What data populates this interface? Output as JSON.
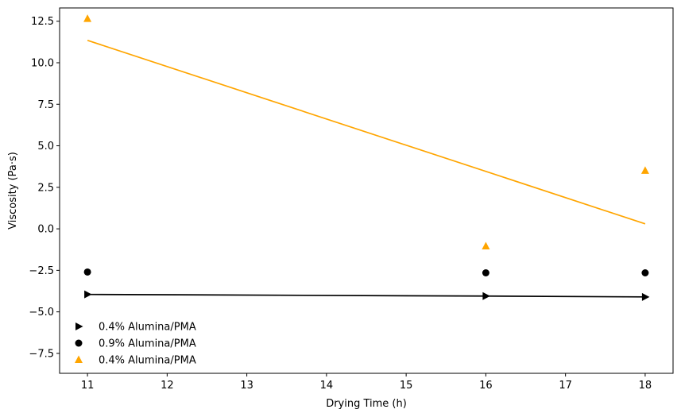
{
  "chart_data": {
    "type": "scatter",
    "xlabel": "Drying Time (h)",
    "ylabel": "Viscosity (Pa·s)",
    "xlim": [
      10.65,
      18.35
    ],
    "ylim": [
      -8.7,
      13.3
    ],
    "xticks": [
      11,
      12,
      13,
      14,
      15,
      16,
      17,
      18
    ],
    "xtick_labels": [
      "11",
      "12",
      "13",
      "14",
      "15",
      "16",
      "17",
      "18"
    ],
    "yticks": [
      -7.5,
      -5.0,
      -2.5,
      0.0,
      2.5,
      5.0,
      7.5,
      10.0,
      12.5
    ],
    "ytick_labels": [
      "−7.5",
      "−5.0",
      "−2.5",
      "0.0",
      "2.5",
      "5.0",
      "7.5",
      "10.0",
      "12.5"
    ],
    "grid": false,
    "legend_position": "lower-left",
    "series": [
      {
        "name": "0.4% Alumina/PMA",
        "marker": "triangle-right",
        "color": "#000000",
        "x": [
          11,
          16,
          18
        ],
        "y": [
          -3.95,
          -4.05,
          -4.1
        ],
        "line": true,
        "line_x": [
          11,
          16,
          18
        ],
        "line_y": [
          -3.95,
          -4.05,
          -4.1
        ]
      },
      {
        "name": "0.9% Alumina/PMA",
        "marker": "circle",
        "color": "#000000",
        "x": [
          11,
          16,
          18
        ],
        "y": [
          -2.6,
          -2.65,
          -2.65
        ],
        "line": false
      },
      {
        "name": "0.4% Alumina/PMA",
        "marker": "triangle-up",
        "color": "#FFA500",
        "x": [
          11,
          16,
          18
        ],
        "y": [
          12.65,
          -1.05,
          3.5
        ],
        "line": true,
        "line_x": [
          11,
          18
        ],
        "line_y": [
          11.35,
          0.3
        ]
      }
    ]
  }
}
